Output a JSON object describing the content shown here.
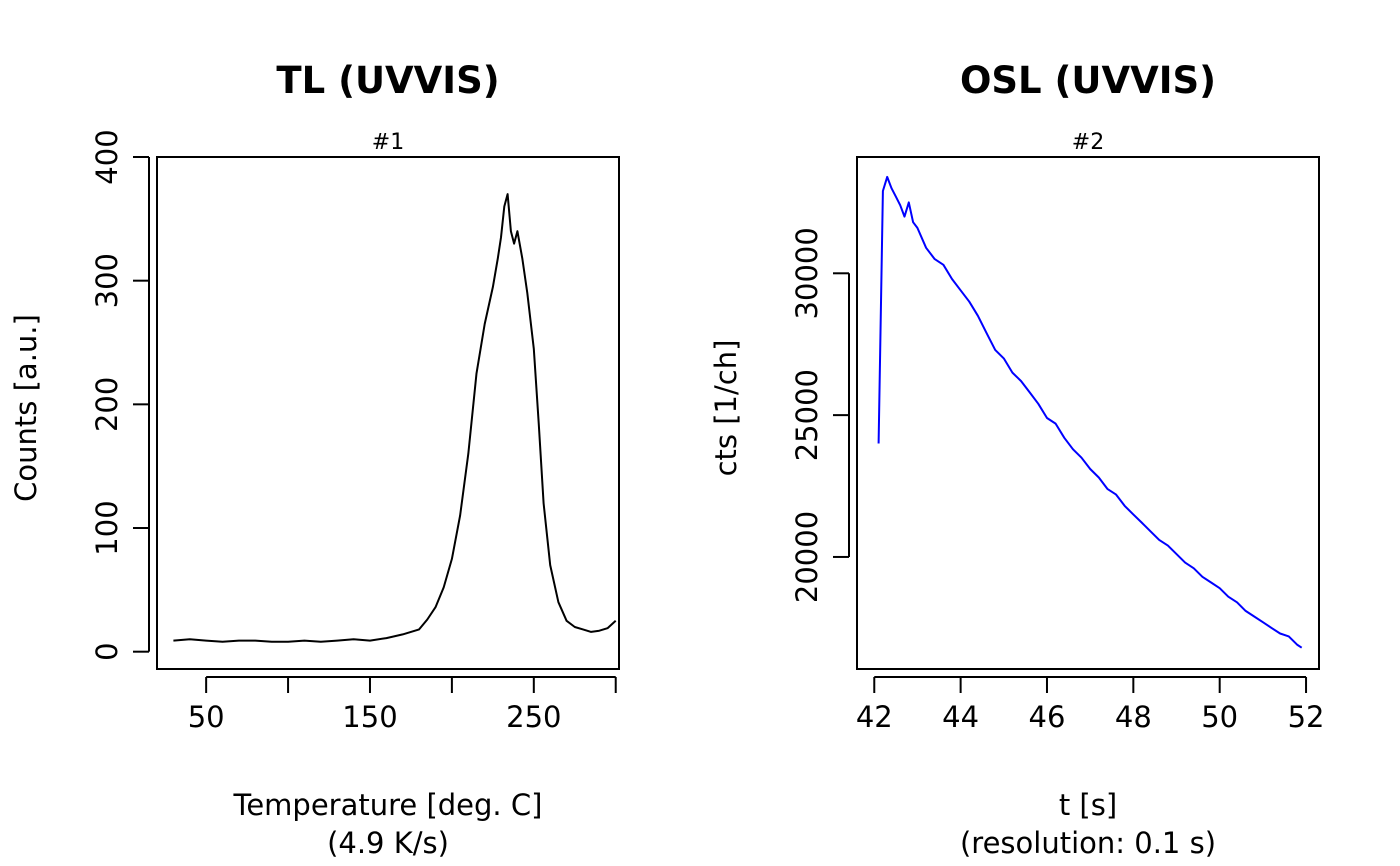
{
  "chart_data": [
    {
      "type": "line",
      "title": "TL (UVVIS)",
      "subtitle": "#1",
      "xlabel": "Temperature [deg. C]",
      "xlabel2": "(4.9 K/s)",
      "ylabel": "Counts [a.u.]",
      "xlim": [
        20,
        302
      ],
      "ylim": [
        -14,
        400
      ],
      "x_ticks": [
        50,
        100,
        150,
        200,
        250,
        300
      ],
      "x_tick_labels": [
        "50",
        "",
        "150",
        "",
        "250",
        ""
      ],
      "y_ticks": [
        0,
        100,
        200,
        300,
        400
      ],
      "y_tick_labels": [
        "0",
        "100",
        "200",
        "300",
        "400"
      ],
      "grid": false,
      "legend": "none",
      "color": "#000000",
      "series": [
        {
          "x": [
            30,
            40,
            50,
            60,
            70,
            80,
            90,
            100,
            110,
            120,
            130,
            140,
            150,
            160,
            170,
            180,
            185,
            190,
            195,
            200,
            205,
            210,
            215,
            220,
            225,
            228,
            230,
            232,
            234,
            236,
            238,
            240,
            243,
            246,
            250,
            253,
            256,
            260,
            265,
            270,
            275,
            280,
            285,
            290,
            295,
            300
          ],
          "y": [
            9,
            10,
            9,
            8,
            9,
            9,
            8,
            8,
            9,
            8,
            9,
            10,
            9,
            11,
            14,
            18,
            26,
            36,
            52,
            75,
            110,
            160,
            225,
            265,
            295,
            318,
            335,
            360,
            370,
            340,
            330,
            340,
            318,
            290,
            245,
            185,
            120,
            70,
            40,
            25,
            20,
            18,
            16,
            17,
            19,
            25
          ]
        }
      ]
    },
    {
      "type": "line",
      "title": "OSL (UVVIS)",
      "subtitle": "#2",
      "xlabel": "t [s]",
      "xlabel2": "(resolution: 0.1 s)",
      "ylabel": "cts [1/ch]",
      "xlim": [
        41.6,
        52.3
      ],
      "ylim": [
        16050,
        34100
      ],
      "x_ticks": [
        42,
        44,
        46,
        48,
        50,
        52
      ],
      "x_tick_labels": [
        "42",
        "44",
        "46",
        "48",
        "50",
        "52"
      ],
      "y_ticks": [
        20000,
        25000,
        30000
      ],
      "y_tick_labels": [
        "20000",
        "25000",
        "30000"
      ],
      "grid": false,
      "legend": "none",
      "color": "#0000ff",
      "series": [
        {
          "x": [
            42.1,
            42.2,
            42.3,
            42.4,
            42.5,
            42.6,
            42.7,
            42.8,
            42.9,
            43.0,
            43.2,
            43.4,
            43.6,
            43.8,
            44.0,
            44.2,
            44.4,
            44.6,
            44.8,
            45.0,
            45.2,
            45.4,
            45.6,
            45.8,
            46.0,
            46.2,
            46.4,
            46.6,
            46.8,
            47.0,
            47.2,
            47.4,
            47.6,
            47.8,
            48.0,
            48.2,
            48.4,
            48.6,
            48.8,
            49.0,
            49.2,
            49.4,
            49.6,
            49.8,
            50.0,
            50.2,
            50.4,
            50.6,
            50.8,
            51.0,
            51.2,
            51.4,
            51.6,
            51.8,
            51.9
          ],
          "y": [
            24000,
            32900,
            33400,
            33000,
            32700,
            32400,
            32000,
            32500,
            31800,
            31600,
            30900,
            30500,
            30300,
            29800,
            29400,
            29000,
            28500,
            27900,
            27300,
            27000,
            26500,
            26200,
            25800,
            25400,
            24900,
            24700,
            24200,
            23800,
            23500,
            23100,
            22800,
            22400,
            22200,
            21800,
            21500,
            21200,
            20900,
            20600,
            20400,
            20100,
            19800,
            19600,
            19300,
            19100,
            18900,
            18600,
            18400,
            18100,
            17900,
            17700,
            17500,
            17300,
            17200,
            16900,
            16800
          ]
        }
      ]
    }
  ]
}
